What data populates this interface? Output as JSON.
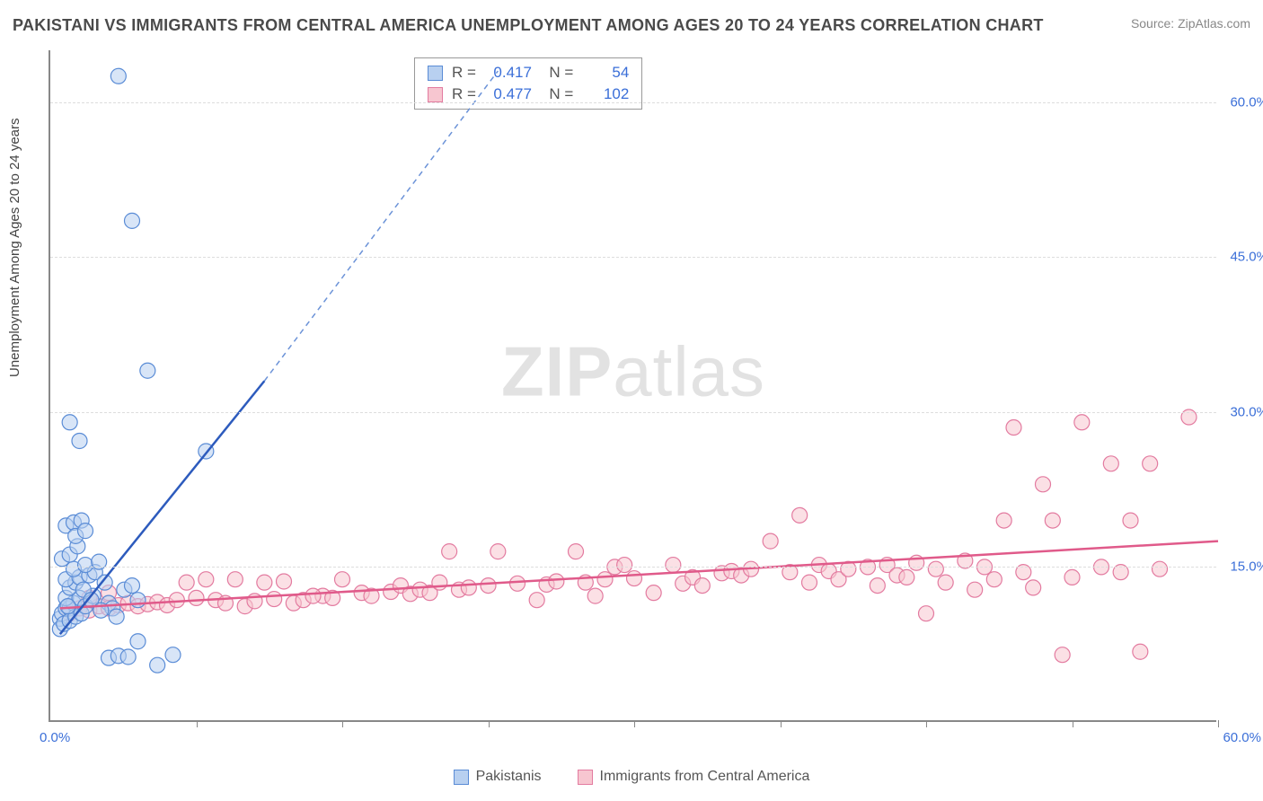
{
  "title": "PAKISTANI VS IMMIGRANTS FROM CENTRAL AMERICA UNEMPLOYMENT AMONG AGES 20 TO 24 YEARS CORRELATION CHART",
  "source": "Source: ZipAtlas.com",
  "ylabel": "Unemployment Among Ages 20 to 24 years",
  "watermark_a": "ZIP",
  "watermark_b": "atlas",
  "chart": {
    "type": "scatter",
    "xlim": [
      0,
      60
    ],
    "ylim": [
      0,
      65
    ],
    "xtick_positions": [
      0,
      7.5,
      15,
      22.5,
      30,
      37.5,
      45,
      52.5,
      60
    ],
    "xtick_labels": {
      "start": "0.0%",
      "end": "60.0%"
    },
    "yticks": [
      {
        "v": 15,
        "label": "15.0%"
      },
      {
        "v": 30,
        "label": "30.0%"
      },
      {
        "v": 45,
        "label": "45.0%"
      },
      {
        "v": 60,
        "label": "60.0%"
      }
    ],
    "grid_color": "#dddddd",
    "background": "#ffffff",
    "point_radius": 8.5,
    "series": [
      {
        "name": "Pakistanis",
        "color_fill": "#b8d0f0",
        "color_stroke": "#5a8cd6",
        "R": "0.417",
        "N": "54",
        "trend": {
          "x1": 0.5,
          "y1": 8.5,
          "x2": 11,
          "y2": 33,
          "dash_x2": 23,
          "dash_y2": 63
        },
        "points": [
          [
            0.5,
            10
          ],
          [
            0.6,
            10.5
          ],
          [
            0.8,
            11
          ],
          [
            1,
            11
          ],
          [
            1.2,
            11.5
          ],
          [
            0.8,
            12
          ],
          [
            1.5,
            12
          ],
          [
            0.5,
            9
          ],
          [
            0.7,
            9.5
          ],
          [
            1,
            9.8
          ],
          [
            1.3,
            10.2
          ],
          [
            1.6,
            10.5
          ],
          [
            1.8,
            11.2
          ],
          [
            1,
            13
          ],
          [
            1.3,
            13.5
          ],
          [
            0.8,
            13.8
          ],
          [
            1.5,
            14
          ],
          [
            2,
            14.2
          ],
          [
            2.3,
            14.5
          ],
          [
            1.2,
            14.8
          ],
          [
            1.8,
            15.2
          ],
          [
            2.5,
            15.5
          ],
          [
            3,
            11.5
          ],
          [
            3.2,
            11
          ],
          [
            3.8,
            12.8
          ],
          [
            4.2,
            13.2
          ],
          [
            4.5,
            11.8
          ],
          [
            0.6,
            15.8
          ],
          [
            1,
            16.2
          ],
          [
            1.4,
            17
          ],
          [
            0.8,
            19
          ],
          [
            1.2,
            19.3
          ],
          [
            1.6,
            19.5
          ],
          [
            1.3,
            18
          ],
          [
            1.8,
            18.5
          ],
          [
            3,
            6.2
          ],
          [
            3.5,
            6.4
          ],
          [
            4,
            6.3
          ],
          [
            6.3,
            6.5
          ],
          [
            4.5,
            7.8
          ],
          [
            5.5,
            5.5
          ],
          [
            1,
            29
          ],
          [
            1.5,
            27.2
          ],
          [
            8,
            26.2
          ],
          [
            5,
            34
          ],
          [
            4.2,
            48.5
          ],
          [
            3.5,
            62.5
          ],
          [
            2.2,
            12.2
          ],
          [
            2.8,
            13.5
          ],
          [
            0.9,
            11.2
          ],
          [
            1.7,
            12.8
          ],
          [
            2.1,
            11.8
          ],
          [
            2.6,
            10.8
          ],
          [
            3.4,
            10.2
          ]
        ]
      },
      {
        "name": "Immigrants from Central America",
        "color_fill": "#f7c6d0",
        "color_stroke": "#e37ba0",
        "R": "0.477",
        "N": "102",
        "trend": {
          "x1": 0.5,
          "y1": 11,
          "x2": 60,
          "y2": 17.5
        },
        "points": [
          [
            1,
            10.5
          ],
          [
            1.5,
            11
          ],
          [
            2,
            10.8
          ],
          [
            2.5,
            11.2
          ],
          [
            3,
            11
          ],
          [
            3.5,
            11.3
          ],
          [
            4,
            11.5
          ],
          [
            4.5,
            11.2
          ],
          [
            5,
            11.4
          ],
          [
            5.5,
            11.6
          ],
          [
            6,
            11.3
          ],
          [
            6.5,
            11.8
          ],
          [
            7,
            13.5
          ],
          [
            7.5,
            12
          ],
          [
            8,
            13.8
          ],
          [
            8.5,
            11.8
          ],
          [
            9,
            11.5
          ],
          [
            9.5,
            13.8
          ],
          [
            10,
            11.2
          ],
          [
            10.5,
            11.7
          ],
          [
            11,
            13.5
          ],
          [
            11.5,
            11.9
          ],
          [
            12,
            13.6
          ],
          [
            12.5,
            11.5
          ],
          [
            13,
            11.8
          ],
          [
            14,
            12.2
          ],
          [
            14.5,
            12
          ],
          [
            15,
            13.8
          ],
          [
            16,
            12.5
          ],
          [
            16.5,
            12.2
          ],
          [
            17.5,
            12.6
          ],
          [
            18,
            13.2
          ],
          [
            18.5,
            12.4
          ],
          [
            19,
            12.8
          ],
          [
            19.5,
            12.5
          ],
          [
            20,
            13.5
          ],
          [
            20.5,
            16.5
          ],
          [
            21,
            12.8
          ],
          [
            21.5,
            13
          ],
          [
            22.5,
            13.2
          ],
          [
            23,
            16.5
          ],
          [
            24,
            13.4
          ],
          [
            25,
            11.8
          ],
          [
            25.5,
            13.3
          ],
          [
            26,
            13.6
          ],
          [
            27,
            16.5
          ],
          [
            27.5,
            13.5
          ],
          [
            28,
            12.2
          ],
          [
            28.5,
            13.8
          ],
          [
            29,
            15
          ],
          [
            29.5,
            15.2
          ],
          [
            30,
            13.9
          ],
          [
            31,
            12.5
          ],
          [
            32,
            15.2
          ],
          [
            32.5,
            13.4
          ],
          [
            33,
            14
          ],
          [
            33.5,
            13.2
          ],
          [
            34.5,
            14.4
          ],
          [
            35,
            14.6
          ],
          [
            35.5,
            14.2
          ],
          [
            36,
            14.8
          ],
          [
            37,
            17.5
          ],
          [
            38,
            14.5
          ],
          [
            38.5,
            20
          ],
          [
            39,
            13.5
          ],
          [
            39.5,
            15.2
          ],
          [
            40,
            14.6
          ],
          [
            40.5,
            13.8
          ],
          [
            41,
            14.8
          ],
          [
            42,
            15
          ],
          [
            42.5,
            13.2
          ],
          [
            43,
            15.2
          ],
          [
            43.5,
            14.2
          ],
          [
            44,
            14
          ],
          [
            44.5,
            15.4
          ],
          [
            45,
            10.5
          ],
          [
            45.5,
            14.8
          ],
          [
            46,
            13.5
          ],
          [
            47,
            15.6
          ],
          [
            47.5,
            12.8
          ],
          [
            48,
            15
          ],
          [
            48.5,
            13.8
          ],
          [
            49,
            19.5
          ],
          [
            49.5,
            28.5
          ],
          [
            50,
            14.5
          ],
          [
            50.5,
            13
          ],
          [
            51,
            23
          ],
          [
            51.5,
            19.5
          ],
          [
            52,
            6.5
          ],
          [
            52.5,
            14
          ],
          [
            53,
            29
          ],
          [
            54,
            15
          ],
          [
            54.5,
            25
          ],
          [
            55,
            14.5
          ],
          [
            55.5,
            19.5
          ],
          [
            56,
            6.8
          ],
          [
            56.5,
            25
          ],
          [
            57,
            14.8
          ],
          [
            58.5,
            29.5
          ],
          [
            2,
            12
          ],
          [
            3,
            12.5
          ],
          [
            13.5,
            12.2
          ]
        ]
      }
    ]
  },
  "legend": {
    "series1": "Pakistanis",
    "series2": "Immigrants from Central America"
  }
}
